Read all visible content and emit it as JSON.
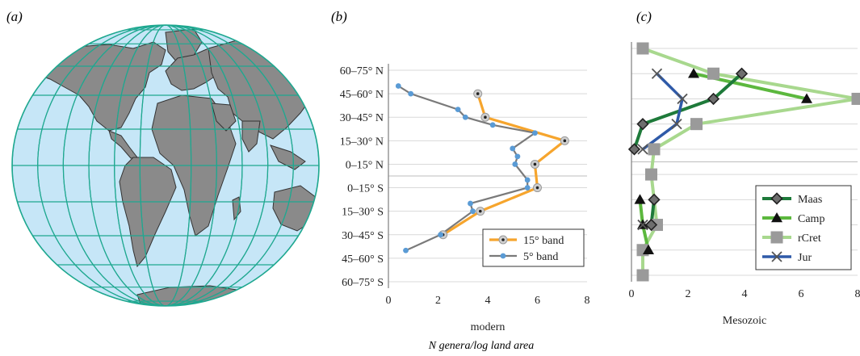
{
  "panels": {
    "a": {
      "label": "(a)"
    },
    "b": {
      "label": "(b)"
    },
    "c": {
      "label": "(c)"
    }
  },
  "xlabel": "N genera/log land area",
  "colors": {
    "ocean": "#c6e6f7",
    "land": "#8a8a8a",
    "graticule": "#1fa890",
    "orange": "#f6a52d",
    "gray_series": "#7a7a7a",
    "blue_marker": "#5a9bd5",
    "maas": "#1e7a3a",
    "camp": "#5cb83e",
    "rcret": "#a8d88e",
    "rcret_marker": "#9a9a9a",
    "jur": "#2f5aa8",
    "axis": "#7f7f7f"
  },
  "chart_data": [
    {
      "type": "line",
      "panel": "b",
      "xlabel": "modern",
      "xlim": [
        0,
        8
      ],
      "xticks": [
        0,
        2,
        4,
        6,
        8
      ],
      "y_categories": [
        "60–75° N",
        "45–60° N",
        "30–45° N",
        "15–30° N",
        "0–15° N",
        "0–15° S",
        "15–30° S",
        "30–45° S",
        "45–60° S",
        "60–75° S"
      ],
      "legend_position": "bottom-right",
      "series": [
        {
          "name": "15° band",
          "points": [
            [
              3.6,
              1
            ],
            [
              3.9,
              2
            ],
            [
              7.1,
              3
            ],
            [
              5.9,
              4
            ],
            [
              6.0,
              5
            ],
            [
              3.7,
              6
            ],
            [
              2.2,
              7
            ]
          ]
        },
        {
          "name": "5° band",
          "points": [
            [
              0.4,
              0.67
            ],
            [
              0.9,
              1.0
            ],
            [
              2.8,
              1.67
            ],
            [
              3.1,
              2.0
            ],
            [
              4.2,
              2.33
            ],
            [
              5.9,
              2.67
            ],
            [
              5.0,
              3.33
            ],
            [
              5.2,
              3.67
            ],
            [
              5.1,
              4.0
            ],
            [
              5.6,
              4.67
            ],
            [
              5.6,
              5.0
            ],
            [
              3.3,
              5.67
            ],
            [
              3.4,
              6.0
            ],
            [
              2.1,
              7.0
            ],
            [
              0.7,
              7.67
            ]
          ]
        }
      ]
    },
    {
      "type": "line",
      "panel": "c",
      "xlabel": "Mesozoic",
      "xlim": [
        0,
        8
      ],
      "xticks": [
        0,
        2,
        4,
        6,
        8
      ],
      "y_categories": [
        "60–75° N",
        "45–60° N",
        "30–45° N",
        "15–30° N",
        "0–15° N",
        "0–15° S",
        "15–30° S",
        "30–45° S",
        "45–60° S",
        "60–75° S"
      ],
      "legend_position": "bottom-right",
      "series": [
        {
          "name": "Maas",
          "points": [
            [
              3.9,
              1
            ],
            [
              2.9,
              2
            ],
            [
              0.4,
              3
            ],
            [
              0.1,
              4
            ]
          ]
        },
        {
          "name": "Maas",
          "points": [
            [
              0.8,
              6
            ],
            [
              0.7,
              7
            ]
          ]
        },
        {
          "name": "Camp",
          "points": [
            [
              2.2,
              1
            ],
            [
              6.2,
              2
            ]
          ]
        },
        {
          "name": "Camp",
          "points": [
            [
              0.3,
              6
            ],
            [
              0.4,
              7
            ],
            [
              0.6,
              8
            ]
          ]
        },
        {
          "name": "rCret",
          "points": [
            [
              0.4,
              0
            ],
            [
              2.9,
              1
            ],
            [
              8.0,
              2
            ],
            [
              2.3,
              3
            ],
            [
              0.8,
              4
            ],
            [
              0.7,
              5
            ],
            [
              0.9,
              7
            ],
            [
              0.4,
              8
            ],
            [
              0.4,
              9
            ]
          ]
        },
        {
          "name": "Jur",
          "points": [
            [
              0.9,
              1
            ],
            [
              1.8,
              2
            ],
            [
              1.6,
              3
            ],
            [
              0.4,
              4
            ]
          ]
        },
        {
          "name": "Jur",
          "points": [
            [
              0.4,
              7
            ]
          ]
        }
      ]
    }
  ]
}
